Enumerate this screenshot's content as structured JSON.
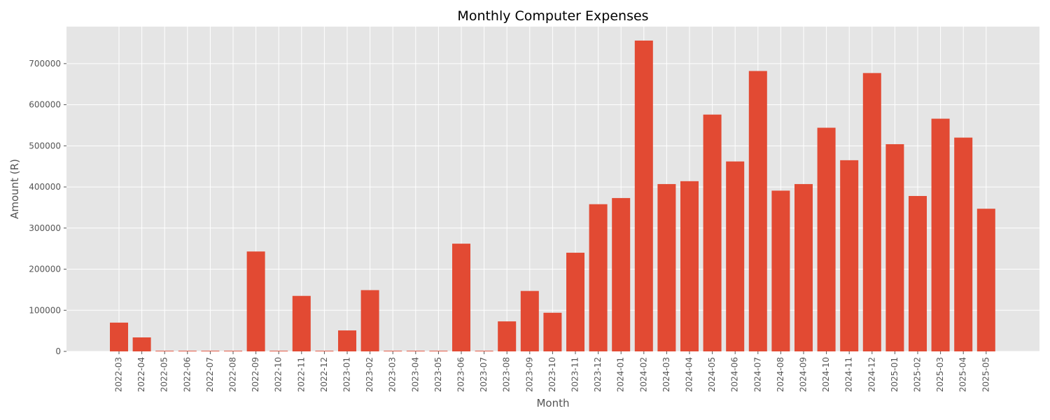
{
  "chart_data": {
    "type": "bar",
    "title": "Monthly Computer Expenses",
    "xlabel": "Month",
    "ylabel": "Amount (R)",
    "ylim": [
      0,
      790000
    ],
    "yticks": [
      0,
      100000,
      200000,
      300000,
      400000,
      500000,
      600000,
      700000
    ],
    "grid": true,
    "legend": "none",
    "categories": [
      "2022-03",
      "2022-04",
      "2022-05",
      "2022-06",
      "2022-07",
      "2022-08",
      "2022-09",
      "2022-10",
      "2022-11",
      "2022-12",
      "2023-01",
      "2023-02",
      "2023-03",
      "2023-04",
      "2023-05",
      "2023-06",
      "2023-07",
      "2023-08",
      "2023-09",
      "2023-10",
      "2023-11",
      "2023-12",
      "2024-01",
      "2024-02",
      "2024-03",
      "2024-04",
      "2024-05",
      "2024-06",
      "2024-07",
      "2024-08",
      "2024-09",
      "2024-10",
      "2024-11",
      "2024-12",
      "2025-01",
      "2025-02",
      "2025-03",
      "2025-04",
      "2025-05"
    ],
    "values": [
      70000,
      34000,
      1500,
      1500,
      1500,
      1500,
      243000,
      1500,
      135000,
      1500,
      51000,
      149000,
      1500,
      1500,
      1500,
      262000,
      1500,
      73000,
      147000,
      94000,
      240000,
      358000,
      373000,
      756000,
      407000,
      414000,
      576000,
      462000,
      682000,
      391000,
      407000,
      544000,
      465000,
      677000,
      504000,
      378000,
      566000,
      520000,
      347000
    ]
  },
  "colors": {
    "bar": "#e24a33",
    "plot_background": "#e5e5e5",
    "grid": "#ffffff",
    "tick_text": "#555555",
    "title_text": "#000000"
  }
}
